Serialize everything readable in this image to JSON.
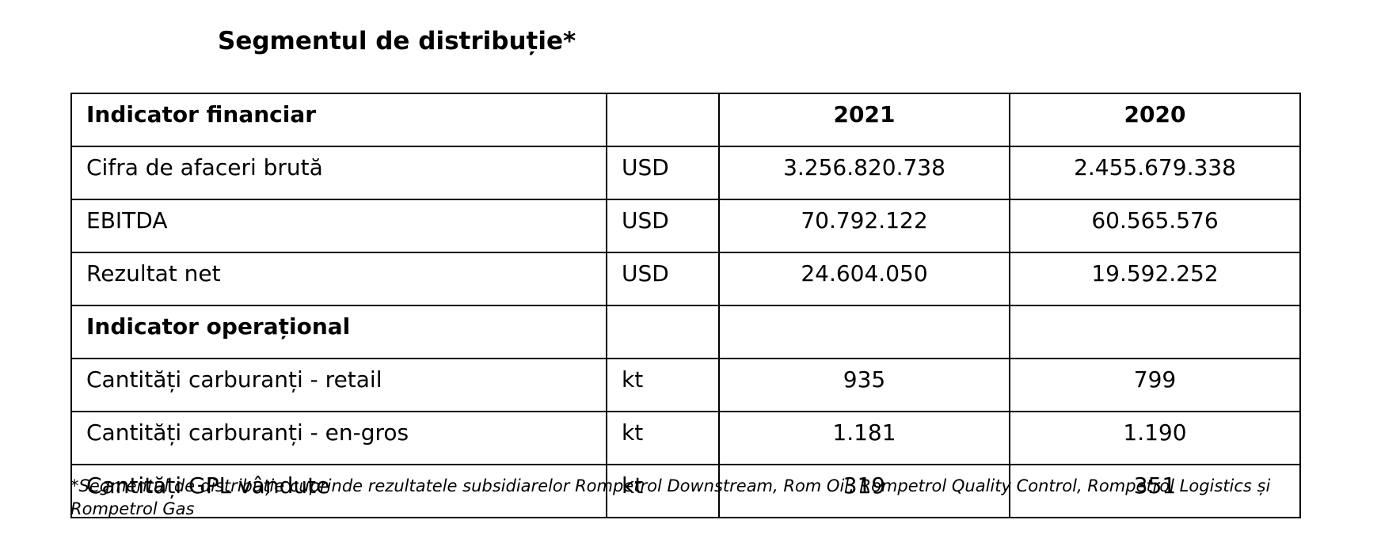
{
  "title": "Segmentul de distribuție*",
  "table": {
    "header": {
      "label": "Indicator financiar",
      "unit": "",
      "year1": "2021",
      "year2": "2020"
    },
    "financial_rows": [
      {
        "label": "Cifra de afaceri brută",
        "unit": "USD",
        "v2021": "3.256.820.738",
        "v2020": "2.455.679.338"
      },
      {
        "label": "EBITDA",
        "unit": "USD",
        "v2021": "70.792.122",
        "v2020": "60.565.576"
      },
      {
        "label": "Rezultat net",
        "unit": "USD",
        "v2021": "24.604.050",
        "v2020": "19.592.252"
      }
    ],
    "operational_header": {
      "label": "Indicator operațional"
    },
    "operational_rows": [
      {
        "label": "Cantități carburanți - retail",
        "unit": "kt",
        "v2021": "935",
        "v2020": "799"
      },
      {
        "label": "Cantități carburanți - en-gros",
        "unit": "kt",
        "v2021": "1.181",
        "v2020": "1.190"
      },
      {
        "label": "Cantități GPL vândute",
        "unit": "kt",
        "v2021": "319",
        "v2020": "351"
      }
    ]
  },
  "footnote": "*Segmentul de distribuție cuprinde rezultatele subsidiarelor Rompetrol Downstream, Rom Oil, Rompetrol Quality Control, Rompetrol Logistics și Rompetrol Gas"
}
